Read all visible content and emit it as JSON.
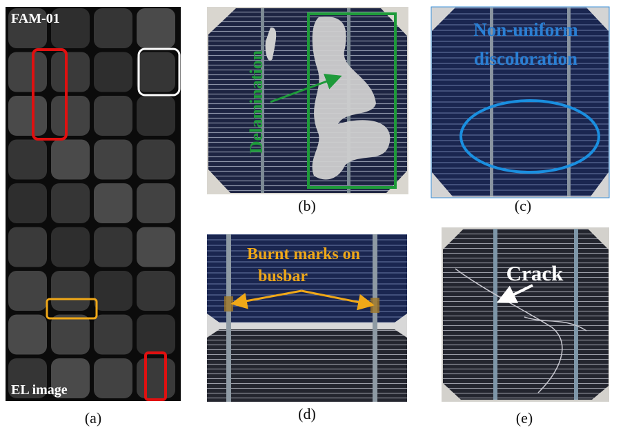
{
  "panel_a": {
    "label": "(a)",
    "module_id": "FAM-01",
    "image_caption": "EL image"
  },
  "panel_b": {
    "label": "(b)",
    "annotation": "Delamination"
  },
  "panel_c": {
    "label": "(c)",
    "annotation_lines": [
      "Non-uniform",
      "discoloration"
    ]
  },
  "panel_d": {
    "label": "(d)",
    "annotation_lines": [
      "Burnt marks on",
      "busbar"
    ]
  },
  "panel_e": {
    "label": "(e)",
    "annotation": "Crack"
  }
}
